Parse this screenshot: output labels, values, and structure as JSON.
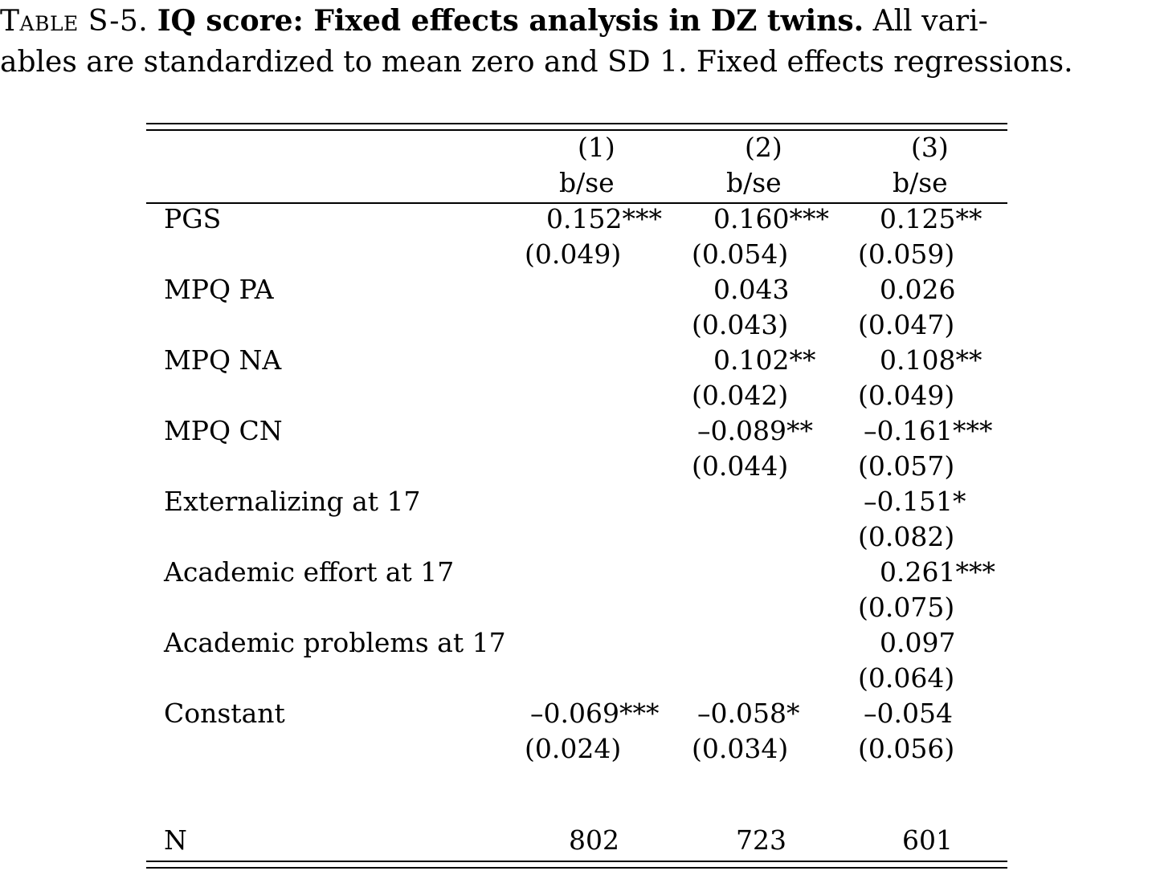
{
  "caption": {
    "label": "Table S-5.",
    "title": "IQ score: Fixed effects analysis in DZ twins.",
    "text_line1_tail": "All vari-",
    "text_line2": "ables are standardized to mean zero and SD 1. Fixed effects regressions."
  },
  "table": {
    "columns": [
      {
        "num": "(1)",
        "stat": "b/se"
      },
      {
        "num": "(2)",
        "stat": "b/se"
      },
      {
        "num": "(3)",
        "stat": "b/se"
      }
    ],
    "rows": [
      {
        "label": "PGS",
        "coef": [
          "0.152***",
          "0.160***",
          "0.125**"
        ],
        "se": [
          "(0.049)",
          "(0.054)",
          "(0.059)"
        ]
      },
      {
        "label": "MPQ PA",
        "coef": [
          "",
          "0.043",
          "0.026"
        ],
        "se": [
          "",
          "(0.043)",
          "(0.047)"
        ]
      },
      {
        "label": "MPQ NA",
        "coef": [
          "",
          "0.102**",
          "0.108**"
        ],
        "se": [
          "",
          "(0.042)",
          "(0.049)"
        ]
      },
      {
        "label": "MPQ CN",
        "coef": [
          "",
          "–0.089**",
          "–0.161***"
        ],
        "se": [
          "",
          "(0.044)",
          "(0.057)"
        ]
      },
      {
        "label": "Externalizing at 17",
        "coef": [
          "",
          "",
          "–0.151*"
        ],
        "se": [
          "",
          "",
          "(0.082)"
        ]
      },
      {
        "label": "Academic effort at 17",
        "coef": [
          "",
          "",
          "0.261***"
        ],
        "se": [
          "",
          "",
          "(0.075)"
        ]
      },
      {
        "label": "Academic problems at 17",
        "coef": [
          "",
          "",
          "0.097"
        ],
        "se": [
          "",
          "",
          "(0.064)"
        ]
      },
      {
        "label": "Constant",
        "coef": [
          "–0.069***",
          "–0.058*",
          "–0.054"
        ],
        "se": [
          "(0.024)",
          "(0.034)",
          "(0.056)"
        ]
      }
    ],
    "n_row": {
      "label": "N",
      "values": [
        "802",
        "723",
        "601"
      ]
    }
  }
}
